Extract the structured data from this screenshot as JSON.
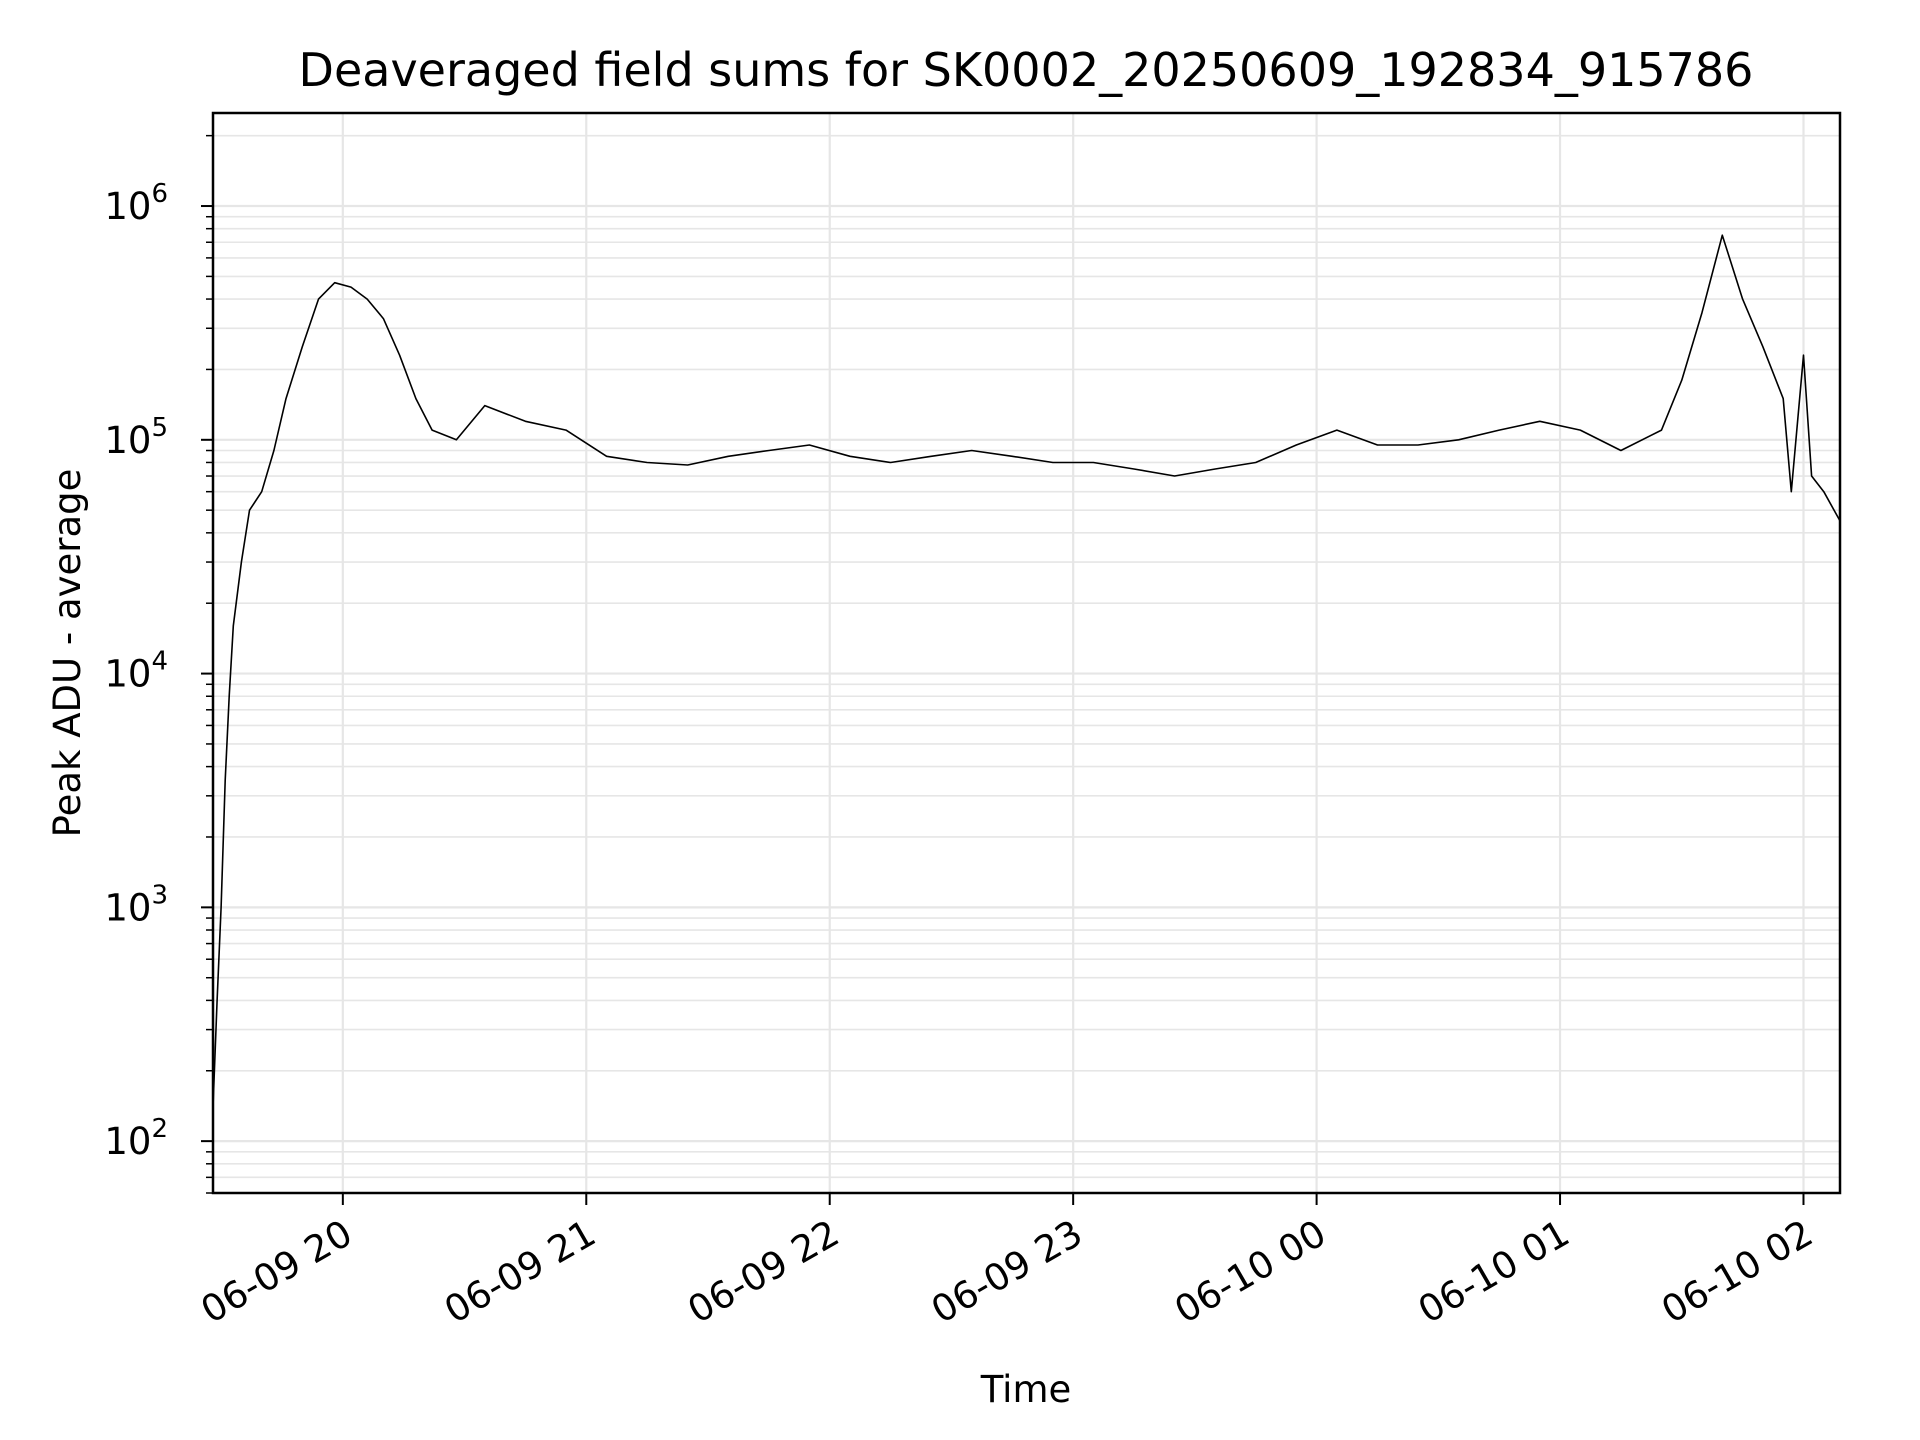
{
  "chart_data": {
    "type": "line",
    "title": "Deaveraged field sums for SK0002_20250609_192834_915786",
    "xlabel": "Time",
    "ylabel": "Peak ADU - average",
    "x_scale": "time",
    "y_scale": "log",
    "xlim": [
      "2025-06-09 19:28",
      "2025-06-10 02:09"
    ],
    "ylim": [
      60,
      2500000
    ],
    "grid": true,
    "x_ticks": [
      {
        "time": "2025-06-09 20:00",
        "label": "06-09 20"
      },
      {
        "time": "2025-06-09 21:00",
        "label": "06-09 21"
      },
      {
        "time": "2025-06-09 22:00",
        "label": "06-09 22"
      },
      {
        "time": "2025-06-09 23:00",
        "label": "06-09 23"
      },
      {
        "time": "2025-06-10 00:00",
        "label": "06-10 00"
      },
      {
        "time": "2025-06-10 01:00",
        "label": "06-10 01"
      },
      {
        "time": "2025-06-10 02:00",
        "label": "06-10 02"
      }
    ],
    "y_ticks": [
      {
        "value": 100,
        "base": "10",
        "exp": "2"
      },
      {
        "value": 1000,
        "base": "10",
        "exp": "3"
      },
      {
        "value": 10000,
        "base": "10",
        "exp": "4"
      },
      {
        "value": 100000,
        "base": "10",
        "exp": "5"
      },
      {
        "value": 1000000,
        "base": "10",
        "exp": "6"
      }
    ],
    "series": [
      {
        "color": "#000000",
        "points": [
          [
            "2025-06-09 19:28",
            140
          ],
          [
            "2025-06-09 19:29",
            400
          ],
          [
            "2025-06-09 19:30",
            1000
          ],
          [
            "2025-06-09 19:31",
            3500
          ],
          [
            "2025-06-09 19:32",
            8000
          ],
          [
            "2025-06-09 19:33",
            16000
          ],
          [
            "2025-06-09 19:35",
            30000
          ],
          [
            "2025-06-09 19:37",
            50000
          ],
          [
            "2025-06-09 19:40",
            60000
          ],
          [
            "2025-06-09 19:43",
            90000
          ],
          [
            "2025-06-09 19:46",
            150000
          ],
          [
            "2025-06-09 19:50",
            250000
          ],
          [
            "2025-06-09 19:54",
            400000
          ],
          [
            "2025-06-09 19:58",
            470000
          ],
          [
            "2025-06-09 20:02",
            450000
          ],
          [
            "2025-06-09 20:06",
            400000
          ],
          [
            "2025-06-09 20:10",
            330000
          ],
          [
            "2025-06-09 20:14",
            230000
          ],
          [
            "2025-06-09 20:18",
            150000
          ],
          [
            "2025-06-09 20:22",
            110000
          ],
          [
            "2025-06-09 20:28",
            100000
          ],
          [
            "2025-06-09 20:35",
            140000
          ],
          [
            "2025-06-09 20:45",
            120000
          ],
          [
            "2025-06-09 20:55",
            110000
          ],
          [
            "2025-06-09 21:05",
            85000
          ],
          [
            "2025-06-09 21:15",
            80000
          ],
          [
            "2025-06-09 21:25",
            78000
          ],
          [
            "2025-06-09 21:35",
            85000
          ],
          [
            "2025-06-09 21:45",
            90000
          ],
          [
            "2025-06-09 21:55",
            95000
          ],
          [
            "2025-06-09 22:05",
            85000
          ],
          [
            "2025-06-09 22:15",
            80000
          ],
          [
            "2025-06-09 22:25",
            85000
          ],
          [
            "2025-06-09 22:35",
            90000
          ],
          [
            "2025-06-09 22:45",
            85000
          ],
          [
            "2025-06-09 22:55",
            80000
          ],
          [
            "2025-06-09 23:05",
            80000
          ],
          [
            "2025-06-09 23:15",
            75000
          ],
          [
            "2025-06-09 23:25",
            70000
          ],
          [
            "2025-06-09 23:35",
            75000
          ],
          [
            "2025-06-09 23:45",
            80000
          ],
          [
            "2025-06-09 23:55",
            95000
          ],
          [
            "2025-06-10 00:05",
            110000
          ],
          [
            "2025-06-10 00:15",
            95000
          ],
          [
            "2025-06-10 00:25",
            95000
          ],
          [
            "2025-06-10 00:35",
            100000
          ],
          [
            "2025-06-10 00:45",
            110000
          ],
          [
            "2025-06-10 00:55",
            120000
          ],
          [
            "2025-06-10 01:05",
            110000
          ],
          [
            "2025-06-10 01:15",
            90000
          ],
          [
            "2025-06-10 01:25",
            110000
          ],
          [
            "2025-06-10 01:30",
            180000
          ],
          [
            "2025-06-10 01:35",
            350000
          ],
          [
            "2025-06-10 01:40",
            750000
          ],
          [
            "2025-06-10 01:45",
            400000
          ],
          [
            "2025-06-10 01:50",
            250000
          ],
          [
            "2025-06-10 01:55",
            150000
          ],
          [
            "2025-06-10 01:57",
            60000
          ],
          [
            "2025-06-10 02:00",
            230000
          ],
          [
            "2025-06-10 02:02",
            70000
          ],
          [
            "2025-06-10 02:05",
            60000
          ],
          [
            "2025-06-10 02:09",
            45000
          ]
        ]
      }
    ]
  }
}
